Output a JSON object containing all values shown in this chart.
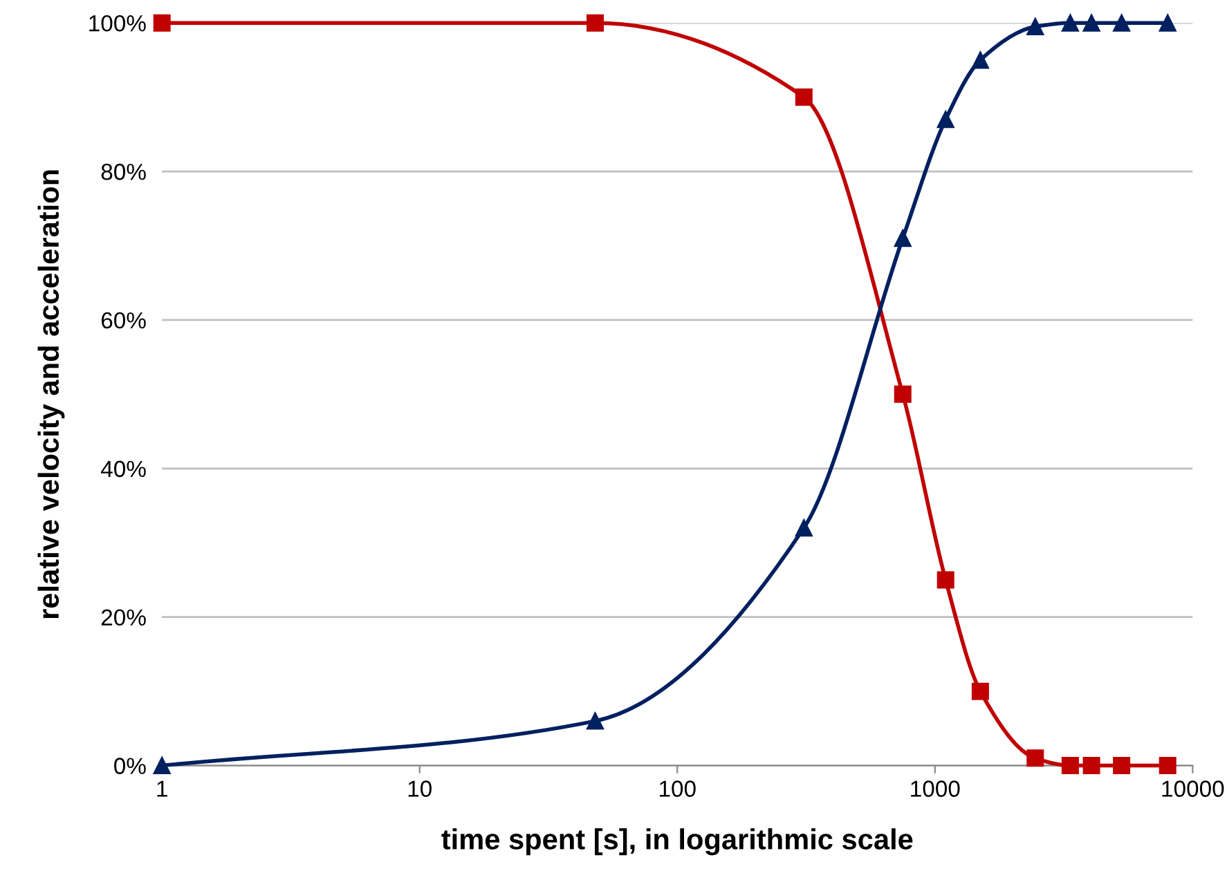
{
  "chart_data": {
    "type": "line",
    "xlabel": "time spent [s], in logarithmic scale",
    "ylabel": "relative velocity and acceleration",
    "log": "x",
    "grid": "y",
    "legend": false,
    "xlim": [
      1,
      10000
    ],
    "xticks": [
      1,
      10,
      100,
      1000,
      10000
    ],
    "ylim": [
      0,
      100
    ],
    "yticks": [
      {
        "value": 0,
        "label": "0%"
      },
      {
        "value": 20,
        "label": "20%"
      },
      {
        "value": 40,
        "label": "40%"
      },
      {
        "value": 60,
        "label": "60%"
      },
      {
        "value": 80,
        "label": "80%"
      },
      {
        "value": 100,
        "label": "100%"
      }
    ],
    "x": [
      1,
      48,
      310,
      750,
      1100,
      1500,
      2450,
      3350,
      4050,
      5300,
      8000
    ],
    "series": [
      {
        "color": "#c00000",
        "marker": "square",
        "values": [
          100,
          100,
          90,
          50,
          25,
          10,
          1,
          0,
          0,
          0,
          0
        ]
      },
      {
        "color": "#002060",
        "marker": "triangle",
        "values": [
          0,
          6,
          32,
          71,
          87,
          95,
          99.5,
          100,
          100,
          100,
          100
        ]
      }
    ]
  }
}
